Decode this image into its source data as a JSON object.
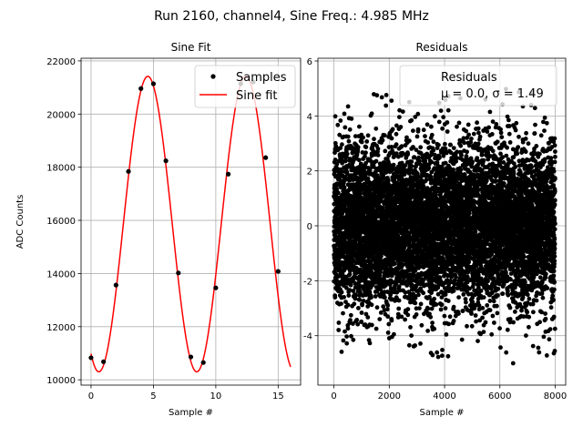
{
  "suptitle": "Run 2160, channel4, Sine Freq.: 4.985 MHz",
  "chart_data": [
    {
      "type": "scatter+line",
      "title": "Sine Fit",
      "xlabel": "Sample #",
      "ylabel": "ADC Counts",
      "xlim": [
        -0.8,
        16.8
      ],
      "ylim": [
        9800,
        22100
      ],
      "xticks": [
        0,
        5,
        10,
        15
      ],
      "yticks": [
        10000,
        12000,
        14000,
        16000,
        18000,
        20000,
        22000
      ],
      "grid": true,
      "legend": {
        "placement": "upper right",
        "entries": [
          "Samples",
          "Sine fit"
        ]
      },
      "samples": {
        "name": "Samples",
        "x": [
          0,
          1,
          2,
          3,
          4,
          5,
          6,
          7,
          8,
          9,
          10,
          11,
          12,
          13,
          14,
          15
        ],
        "y": [
          10830,
          10680,
          13565,
          17840,
          20960,
          21140,
          18240,
          14020,
          10860,
          10650,
          13460,
          17740,
          21140,
          21210,
          18360,
          14080
        ]
      },
      "fit": {
        "name": "Sine fit",
        "amplitude": 5560,
        "offset": 15860,
        "period_samples": 7.85,
        "peak_at": 4.55,
        "x_range": [
          0,
          16
        ]
      },
      "colors": {
        "samples": "#000000",
        "fit": "#ff0000"
      }
    },
    {
      "type": "scatter",
      "title": "Residuals",
      "xlabel": "Sample #",
      "xlim": [
        -580,
        8380
      ],
      "ylim": [
        -5.8,
        6.1
      ],
      "xticks": [
        0,
        2000,
        4000,
        6000,
        8000
      ],
      "yticks": [
        -4,
        -2,
        0,
        2,
        4,
        6
      ],
      "grid": true,
      "legend": {
        "placement": "upper right",
        "entries": [
          "Residuals",
          "μ = 0.0, σ = 1.49"
        ]
      },
      "residuals": {
        "name": "Residuals",
        "n": 8000,
        "mean": 0.0,
        "sigma": 1.49
      },
      "colors": {
        "points": "#000000"
      }
    }
  ]
}
